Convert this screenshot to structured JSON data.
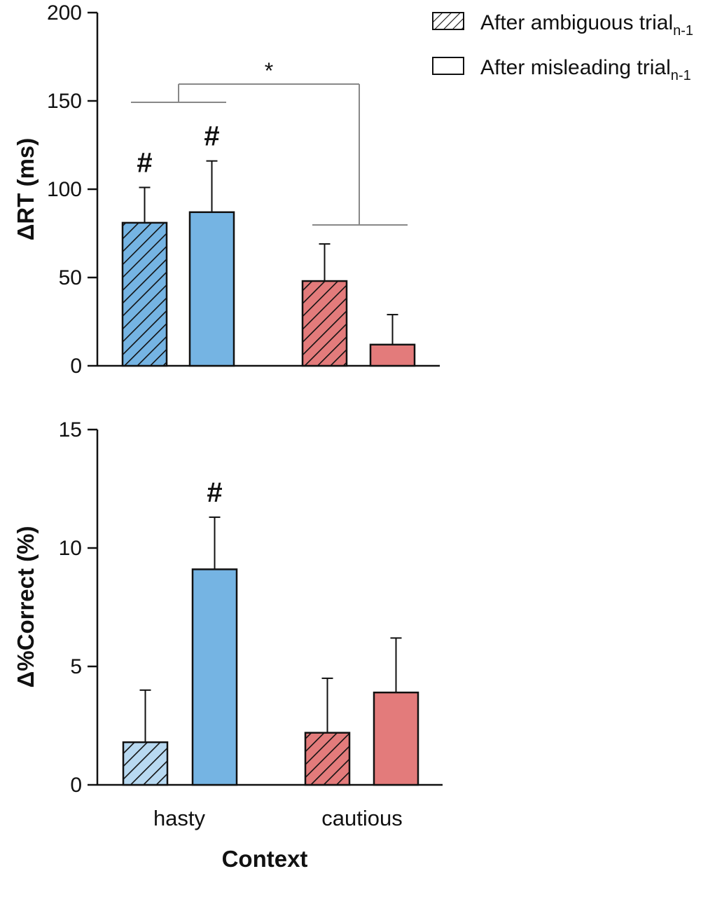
{
  "legend": {
    "entries": [
      {
        "text": "After ambiguous trial",
        "sub": "n-1",
        "style": "hatched"
      },
      {
        "text": "After misleading trial",
        "sub": "n-1",
        "style": "solid"
      }
    ]
  },
  "colors": {
    "hasty_fill": "#75b4e3",
    "hasty_fill_light": "#b8d9f1",
    "cautious_fill": "#e37b7b",
    "stroke": "#111111",
    "bracket": "#888888"
  },
  "chart_data": [
    {
      "type": "bar",
      "panel": "top",
      "title": "",
      "xlabel": "",
      "ylabel_delta": "Δ",
      "ylabel": "RT (ms)",
      "ylim": [
        0,
        200
      ],
      "yticks": [
        0,
        50,
        100,
        150,
        200
      ],
      "categories": [
        "hasty",
        "cautious"
      ],
      "series": [
        {
          "name": "After ambiguous trial n-1",
          "values": [
            81,
            48
          ],
          "errors": [
            20,
            21
          ]
        },
        {
          "name": "After misleading trial n-1",
          "values": [
            87,
            12
          ],
          "errors": [
            29,
            17
          ]
        }
      ],
      "annotations": [
        {
          "text": "#",
          "category": "hasty",
          "series": 0
        },
        {
          "text": "#",
          "category": "hasty",
          "series": 1
        }
      ],
      "significance": {
        "text": "*",
        "between": [
          "hasty",
          "cautious"
        ]
      }
    },
    {
      "type": "bar",
      "panel": "bottom",
      "title": "",
      "xlabel": "Context",
      "ylabel_delta": "Δ",
      "ylabel": "%Correct (%)",
      "ylim": [
        0,
        15
      ],
      "yticks": [
        0,
        5,
        10,
        15
      ],
      "categories": [
        "hasty",
        "cautious"
      ],
      "series": [
        {
          "name": "After ambiguous trial n-1",
          "values": [
            1.8,
            2.2
          ],
          "errors": [
            2.2,
            2.3
          ]
        },
        {
          "name": "After misleading trial n-1",
          "values": [
            9.1,
            3.9
          ],
          "errors": [
            2.2,
            2.3
          ]
        }
      ],
      "annotations": [
        {
          "text": "#",
          "category": "hasty",
          "series": 1
        }
      ]
    }
  ]
}
